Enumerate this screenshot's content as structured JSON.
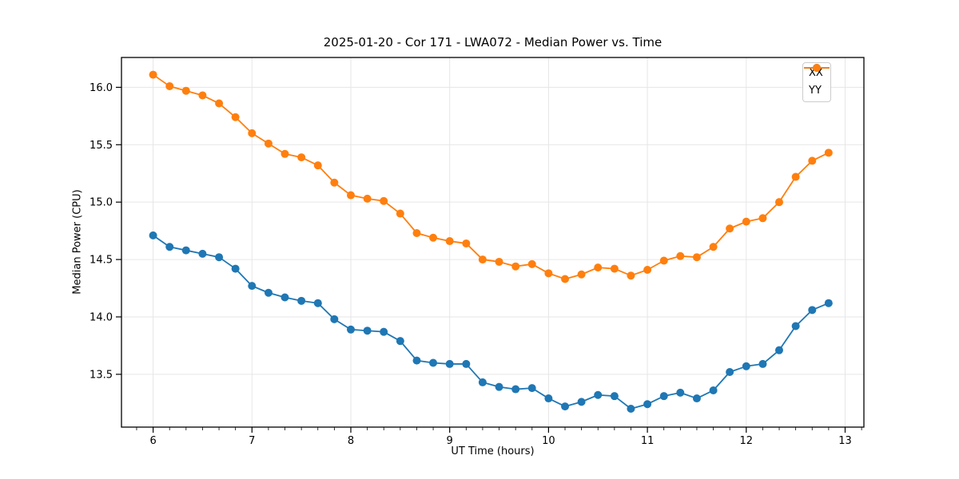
{
  "chart_data": {
    "type": "line",
    "title": "2025-01-20 - Cor 171 - LWA072 - Median Power vs. Time",
    "xlabel": "UT Time (hours)",
    "ylabel": "Median Power (CPU)",
    "xlim": [
      5.68,
      13.19
    ],
    "ylim": [
      13.04,
      16.26
    ],
    "x_ticks": [
      6,
      7,
      8,
      9,
      10,
      11,
      12,
      13
    ],
    "y_ticks": [
      13.5,
      14.0,
      14.5,
      15.0,
      15.5,
      16.0
    ],
    "x_minor_step": 0.166667,
    "grid": true,
    "legend_position": "upper right",
    "background_color": "#ffffff",
    "grid_color": "#e6e6e6",
    "x": [
      6.0,
      6.167,
      6.333,
      6.5,
      6.667,
      6.833,
      7.0,
      7.167,
      7.333,
      7.5,
      7.667,
      7.833,
      8.0,
      8.167,
      8.333,
      8.5,
      8.667,
      8.833,
      9.0,
      9.167,
      9.333,
      9.5,
      9.667,
      9.833,
      10.0,
      10.167,
      10.333,
      10.5,
      10.667,
      10.833,
      11.0,
      11.167,
      11.333,
      11.5,
      11.667,
      11.833,
      12.0,
      12.167,
      12.333,
      12.5,
      12.667,
      12.833
    ],
    "series": [
      {
        "name": "XX",
        "color": "#1f77b4",
        "values": [
          14.71,
          14.61,
          14.58,
          14.55,
          14.52,
          14.42,
          14.27,
          14.21,
          14.17,
          14.14,
          14.12,
          13.98,
          13.89,
          13.88,
          13.87,
          13.79,
          13.62,
          13.6,
          13.59,
          13.59,
          13.43,
          13.39,
          13.37,
          13.38,
          13.29,
          13.22,
          13.26,
          13.32,
          13.31,
          13.2,
          13.24,
          13.31,
          13.34,
          13.29,
          13.36,
          13.52,
          13.57,
          13.59,
          13.71,
          13.92,
          14.06,
          14.12
        ]
      },
      {
        "name": "YY",
        "color": "#ff7f0e",
        "values": [
          16.11,
          16.01,
          15.97,
          15.93,
          15.86,
          15.74,
          15.6,
          15.51,
          15.42,
          15.39,
          15.32,
          15.17,
          15.06,
          15.03,
          15.01,
          14.9,
          14.73,
          14.69,
          14.66,
          14.64,
          14.5,
          14.48,
          14.44,
          14.46,
          14.38,
          14.33,
          14.37,
          14.43,
          14.42,
          14.36,
          14.41,
          14.49,
          14.53,
          14.52,
          14.61,
          14.77,
          14.83,
          14.86,
          15.0,
          15.22,
          15.36,
          15.43
        ]
      }
    ]
  }
}
